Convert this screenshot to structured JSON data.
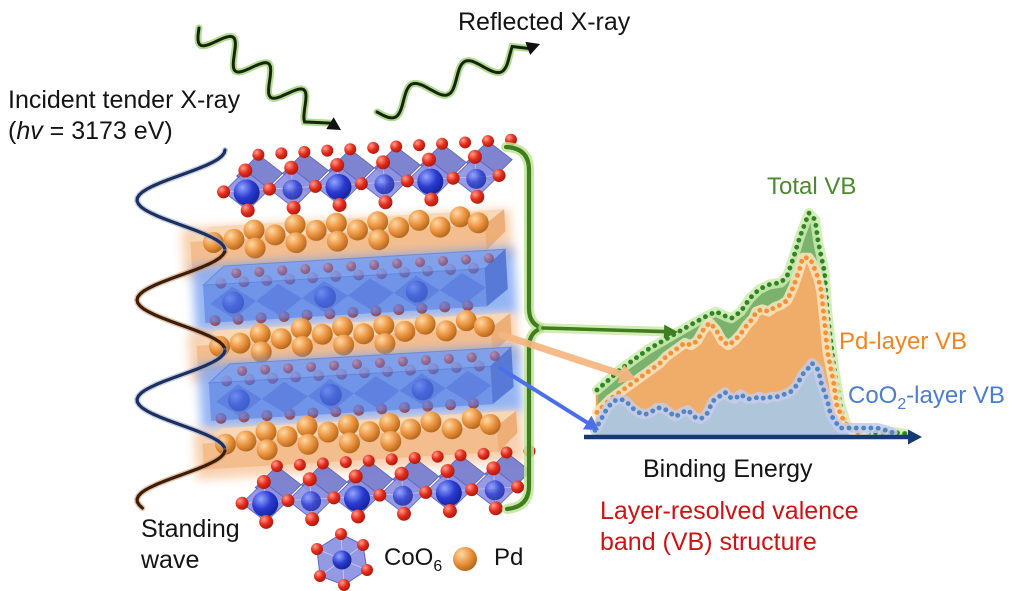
{
  "annotations": {
    "incident_line1": "Incident tender X-ray",
    "incident_open": "(",
    "incident_hnu": "hv",
    "incident_rest": " = 3173 eV)",
    "reflected": "Reflected X-ray",
    "standing_line1": "Standing",
    "standing_line2": "wave"
  },
  "legend": {
    "coo6_main": "CoO",
    "coo6_sub": "6",
    "pd": "Pd"
  },
  "caption": {
    "line1": "Layer-resolved valence",
    "line2": "band (VB) structure",
    "color": "#cf1312"
  },
  "structure": {
    "layers": [
      "CoO2 crystal",
      "Pd",
      "CoO2 highlighted",
      "Pd",
      "CoO2 highlighted",
      "Pd",
      "CoO2 crystal"
    ],
    "wave_navy": "#1c2f5e",
    "wave_brown": "#3c1d07",
    "brace_green": "#3f7d20",
    "xray_core": "#17240b",
    "xray_glow": "#a6d884"
  },
  "chart_data": {
    "type": "area",
    "title": "",
    "xlabel": "Binding Energy",
    "ylabel": "",
    "xlim": [
      0,
      100
    ],
    "ylim": [
      0,
      100
    ],
    "grid": false,
    "legend_position": "right-inline",
    "axis_color": "#173a75",
    "series": [
      {
        "name": "Total VB",
        "label_color": "#4b8a2e",
        "dot_color": "#2f8427",
        "glow_color": "#cdebae",
        "fill_color": "#63a455",
        "fill_opacity": 0.85,
        "points": [
          [
            0.6,
            21
          ],
          [
            4,
            25
          ],
          [
            8,
            30
          ],
          [
            12,
            34
          ],
          [
            17,
            39
          ],
          [
            22,
            43
          ],
          [
            27,
            47
          ],
          [
            32,
            51
          ],
          [
            36,
            54
          ],
          [
            39,
            56
          ],
          [
            42,
            54
          ],
          [
            44,
            53
          ],
          [
            47,
            56
          ],
          [
            50,
            62
          ],
          [
            53,
            66
          ],
          [
            56,
            68
          ],
          [
            60,
            69
          ],
          [
            62,
            72
          ],
          [
            64,
            80
          ],
          [
            66,
            89
          ],
          [
            69,
            100
          ],
          [
            71,
            97
          ],
          [
            72,
            87
          ],
          [
            74,
            74
          ],
          [
            75,
            55
          ],
          [
            77,
            32
          ],
          [
            79,
            15
          ],
          [
            81,
            6
          ],
          [
            83,
            3
          ],
          [
            87,
            2
          ],
          [
            92,
            2
          ],
          [
            97,
            2
          ],
          [
            100,
            1.5
          ]
        ]
      },
      {
        "name": "Pd-layer VB",
        "label_color": "#f5831f",
        "dot_color": "#f78f35",
        "glow_color": "#fce4c0",
        "fill_color": "#f6ad68",
        "fill_opacity": 0.95,
        "points": [
          [
            0.6,
            11
          ],
          [
            5,
            17
          ],
          [
            9,
            21
          ],
          [
            13,
            25
          ],
          [
            16,
            28
          ],
          [
            19,
            31
          ],
          [
            21,
            33
          ],
          [
            23,
            36
          ],
          [
            25,
            38
          ],
          [
            27,
            40
          ],
          [
            29,
            42
          ],
          [
            31,
            41
          ],
          [
            33,
            43
          ],
          [
            35,
            48
          ],
          [
            37,
            51
          ],
          [
            39,
            48
          ],
          [
            41,
            43
          ],
          [
            43,
            41
          ],
          [
            45,
            43
          ],
          [
            47,
            46
          ],
          [
            49,
            50
          ],
          [
            51,
            53
          ],
          [
            52,
            56
          ],
          [
            54,
            57
          ],
          [
            56,
            56
          ],
          [
            58,
            58
          ],
          [
            60,
            59
          ],
          [
            62,
            61
          ],
          [
            64,
            67
          ],
          [
            66,
            75
          ],
          [
            67,
            80
          ],
          [
            69,
            80
          ],
          [
            70,
            78
          ],
          [
            72,
            71
          ],
          [
            73,
            65
          ],
          [
            74,
            52
          ],
          [
            75,
            38
          ],
          [
            77,
            24
          ],
          [
            78,
            14
          ],
          [
            80,
            8
          ],
          [
            82,
            4
          ],
          [
            84,
            2
          ],
          [
            87,
            2
          ]
        ]
      },
      {
        "name": "CoO2-layer VB",
        "label_main": "CoO",
        "label_sub": "2",
        "label_rest": "-layer VB",
        "label_color": "#4c7dd0",
        "dot_color": "#4e86c6",
        "glow_color": "#c5cbe9",
        "fill_color": "#a9c7e3",
        "fill_opacity": 0.92,
        "points": [
          [
            0,
            3
          ],
          [
            2,
            8
          ],
          [
            4,
            13
          ],
          [
            6,
            16
          ],
          [
            8,
            17
          ],
          [
            10,
            16
          ],
          [
            12,
            13
          ],
          [
            14,
            11
          ],
          [
            16,
            10
          ],
          [
            18,
            11
          ],
          [
            20,
            13
          ],
          [
            22,
            13
          ],
          [
            24,
            11
          ],
          [
            26,
            9
          ],
          [
            28,
            11
          ],
          [
            30,
            12
          ],
          [
            32,
            9
          ],
          [
            34,
            8
          ],
          [
            36,
            10
          ],
          [
            38,
            16
          ],
          [
            40,
            18
          ],
          [
            42,
            20
          ],
          [
            43,
            18
          ],
          [
            45,
            17
          ],
          [
            47,
            19
          ],
          [
            49,
            17
          ],
          [
            51,
            17
          ],
          [
            53,
            18
          ],
          [
            55,
            17
          ],
          [
            57,
            18
          ],
          [
            59,
            18
          ],
          [
            61,
            19
          ],
          [
            63,
            20
          ],
          [
            65,
            23
          ],
          [
            67,
            28
          ],
          [
            69,
            31
          ],
          [
            70,
            33
          ],
          [
            72,
            30
          ],
          [
            73,
            24
          ],
          [
            75,
            16
          ],
          [
            76,
            10
          ],
          [
            78,
            6
          ],
          [
            79,
            4
          ],
          [
            82,
            4
          ],
          [
            84,
            4
          ],
          [
            86,
            4
          ],
          [
            89,
            4
          ],
          [
            91,
            4
          ],
          [
            94,
            3
          ],
          [
            96,
            2
          ]
        ]
      }
    ]
  }
}
